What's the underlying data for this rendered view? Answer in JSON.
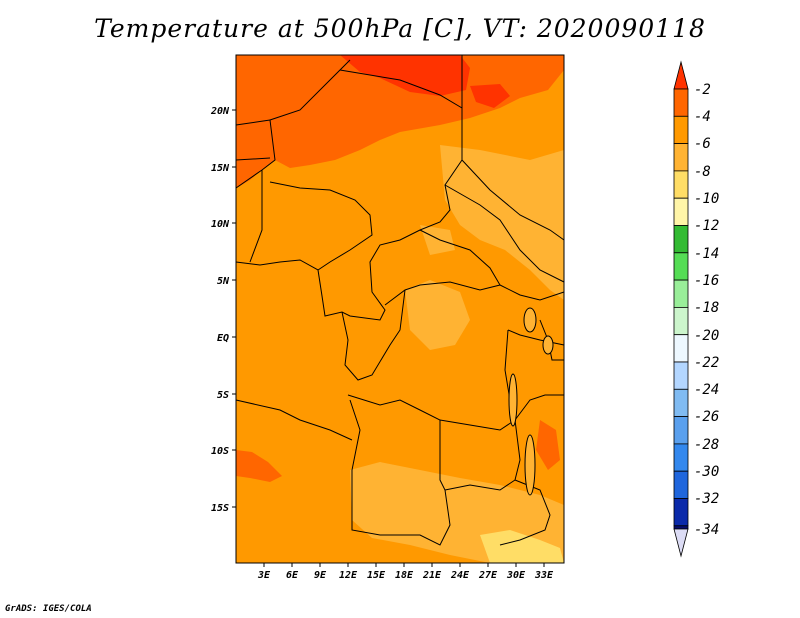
{
  "title": "Temperature at 500hPa [C], VT: 2020090118",
  "credit": "GrADS: IGES/COLA",
  "map": {
    "lon_ticks": [
      "3E",
      "6E",
      "9E",
      "12E",
      "15E",
      "18E",
      "21E",
      "24E",
      "27E",
      "30E",
      "33E"
    ],
    "lat_ticks": [
      "20N",
      "15N",
      "10N",
      "5N",
      "EQ",
      "5S",
      "10S",
      "15S"
    ]
  },
  "colorbar": {
    "labels": [
      "-2",
      "-4",
      "-6",
      "-8",
      "-10",
      "-12",
      "-14",
      "-16",
      "-18",
      "-20",
      "-22",
      "-24",
      "-26",
      "-28",
      "-30",
      "-32",
      "-34"
    ],
    "colors": [
      "#ff3300",
      "#ff6600",
      "#ff9900",
      "#ffb333",
      "#ffdd66",
      "#fff5a8",
      "#33bb33",
      "#55dd55",
      "#99ee99",
      "#ccf5cc",
      "#eef8ff",
      "#b3d6ff",
      "#80bbf2",
      "#5aa0ee",
      "#3388ee",
      "#1f66dd",
      "#1144cc",
      "#0b2aaa",
      "#080e6e",
      "#dcdcf5"
    ]
  },
  "legend_units": "C"
}
